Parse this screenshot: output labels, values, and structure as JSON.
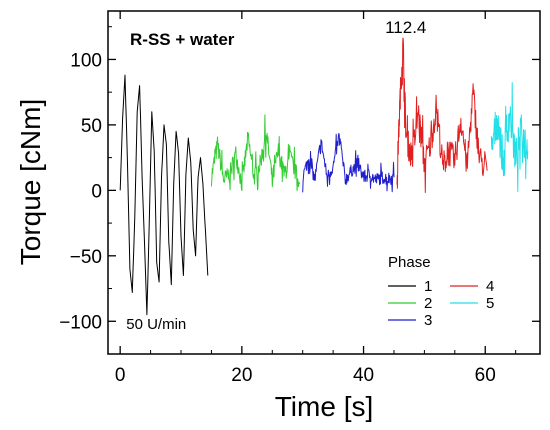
{
  "chart_data": {
    "type": "line",
    "title": "R-SS + water",
    "xlabel": "Time [s]",
    "ylabel": "Torque [cNm]",
    "xlim": [
      -2,
      69
    ],
    "ylim": [
      -125,
      137
    ],
    "xticks": [
      0,
      20,
      40,
      60
    ],
    "yticks": [
      -100,
      -50,
      0,
      50,
      100
    ],
    "grid": false,
    "legend": {
      "title": "Phase",
      "placement": "bottom-right"
    },
    "annotations": [
      {
        "text": "112.4",
        "x": 46.5,
        "y": 112.4,
        "color": "#b22222"
      },
      {
        "text": "50 U/min",
        "x": 1,
        "y": -102,
        "color": "#000000"
      }
    ],
    "series": [
      {
        "name": "1",
        "color": "#000000",
        "x": [
          0,
          0.4,
          0.8,
          1.2,
          1.6,
          2.0,
          2.4,
          2.8,
          3.2,
          3.6,
          4.0,
          4.4,
          4.8,
          5.2,
          5.6,
          6.0,
          6.4,
          6.8,
          7.2,
          7.6,
          8.0,
          8.4,
          8.8,
          9.2,
          9.6,
          10.0,
          10.4,
          10.8,
          11.2,
          11.6,
          12.0,
          12.4,
          12.8,
          13.2,
          13.6,
          14.0,
          14.4
        ],
        "y": [
          0,
          55,
          88,
          20,
          -60,
          -78,
          -20,
          60,
          80,
          10,
          -40,
          -95,
          -20,
          60,
          30,
          -55,
          -70,
          10,
          50,
          35,
          -40,
          -72,
          5,
          45,
          28,
          -35,
          -65,
          12,
          40,
          22,
          -30,
          -50,
          10,
          25,
          5,
          -30,
          -65
        ]
      },
      {
        "name": "2",
        "color": "#33cc33",
        "x": [
          15,
          16,
          17,
          18,
          19,
          20,
          21,
          22,
          23,
          24,
          25,
          26,
          27,
          28,
          29.5
        ],
        "y": [
          10,
          35,
          8,
          12,
          28,
          5,
          40,
          10,
          20,
          45,
          8,
          30,
          12,
          25,
          5
        ],
        "noise": 14
      },
      {
        "name": "3",
        "color": "#1f1fcc",
        "x": [
          30,
          31,
          32,
          33,
          34,
          35,
          36,
          37,
          38,
          39,
          40,
          41,
          42,
          43,
          44,
          45
        ],
        "y": [
          10,
          25,
          8,
          38,
          10,
          18,
          42,
          8,
          15,
          20,
          10,
          12,
          8,
          10,
          9,
          10
        ],
        "noise": 10
      },
      {
        "name": "4",
        "color": "#e02020",
        "x": [
          45.5,
          46,
          46.5,
          47,
          48,
          49,
          50,
          51,
          52,
          53,
          54,
          55,
          56,
          57,
          58,
          59,
          60.3
        ],
        "y": [
          10,
          70,
          112.4,
          40,
          25,
          60,
          20,
          35,
          65,
          18,
          30,
          22,
          55,
          18,
          75,
          25,
          15
        ],
        "noise": 22
      },
      {
        "name": "5",
        "color": "#22e0e8",
        "x": [
          61,
          62,
          63,
          64,
          65,
          66,
          67
        ],
        "y": [
          30,
          55,
          20,
          60,
          25,
          45,
          30
        ],
        "noise": 30
      }
    ]
  }
}
